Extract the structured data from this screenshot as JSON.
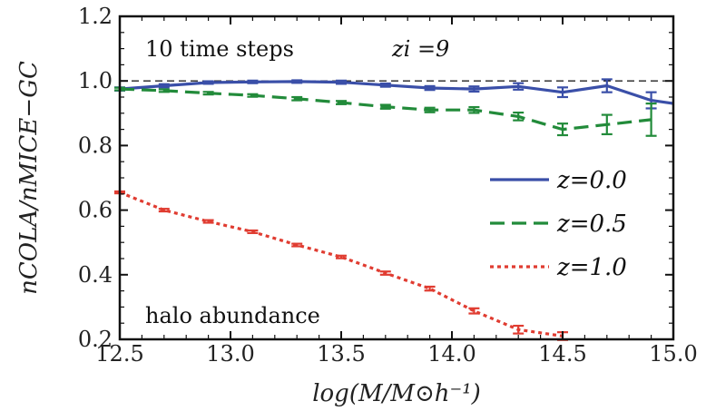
{
  "chart_data": {
    "type": "line",
    "title": "",
    "xlabel": "log(M/M⊙h⁻¹)",
    "ylabel": "nCOLA/nMICE−GC",
    "xlim": [
      12.5,
      15.0
    ],
    "ylim": [
      0.2,
      1.2
    ],
    "xticks": [
      "12.5",
      "13.0",
      "13.5",
      "14.0",
      "14.5",
      "15.0"
    ],
    "yticks": [
      "0.2",
      "0.4",
      "0.6",
      "0.8",
      "1.0",
      "1.2"
    ],
    "reference_line": 1.0,
    "annotations": [
      "10 time steps",
      "zi =9",
      "halo abundance"
    ],
    "legend_position": "right",
    "series": [
      {
        "name": "z=0.0",
        "color": "#3a4fa8",
        "style": "solid",
        "x": [
          12.5,
          12.7,
          12.9,
          13.1,
          13.3,
          13.5,
          13.7,
          13.9,
          14.1,
          14.3,
          14.5,
          14.7,
          14.9,
          15.0
        ],
        "y": [
          0.975,
          0.985,
          0.995,
          0.997,
          0.998,
          0.996,
          0.987,
          0.978,
          0.975,
          0.983,
          0.965,
          0.985,
          0.94,
          0.93
        ],
        "err": [
          0.005,
          0.005,
          0.004,
          0.004,
          0.004,
          0.005,
          0.005,
          0.006,
          0.008,
          0.01,
          0.015,
          0.02,
          0.025,
          0
        ]
      },
      {
        "name": "z=0.5",
        "color": "#228b3a",
        "style": "dashed",
        "x": [
          12.5,
          12.7,
          12.9,
          13.1,
          13.3,
          13.5,
          13.7,
          13.9,
          14.1,
          14.3,
          14.5,
          14.7,
          14.9
        ],
        "y": [
          0.975,
          0.97,
          0.962,
          0.955,
          0.945,
          0.933,
          0.92,
          0.91,
          0.91,
          0.89,
          0.85,
          0.865,
          0.88
        ],
        "err": [
          0.004,
          0.004,
          0.004,
          0.004,
          0.005,
          0.005,
          0.006,
          0.007,
          0.009,
          0.012,
          0.018,
          0.03,
          0.05
        ]
      },
      {
        "name": "z=1.0",
        "color": "#e03c31",
        "style": "dotted",
        "x": [
          12.5,
          12.7,
          12.9,
          13.1,
          13.3,
          13.5,
          13.7,
          13.9,
          14.1,
          14.3,
          14.5
        ],
        "y": [
          0.655,
          0.6,
          0.565,
          0.533,
          0.492,
          0.455,
          0.405,
          0.357,
          0.288,
          0.23,
          0.21
        ],
        "err": [
          0.003,
          0.004,
          0.004,
          0.004,
          0.004,
          0.004,
          0.005,
          0.006,
          0.008,
          0.012,
          0.012
        ]
      }
    ]
  }
}
